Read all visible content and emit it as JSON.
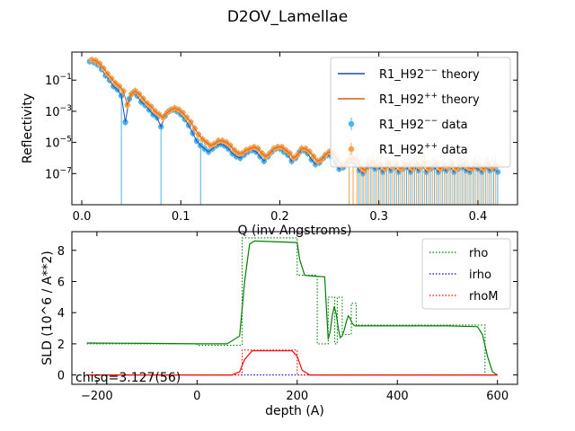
{
  "figure_title": "D2OV_Lamellae",
  "chart_data": [
    {
      "type": "scatter",
      "title": "",
      "xlabel": "Q (inv Angstroms)",
      "ylabel": "Reflectivity",
      "xlim": [
        -0.01,
        0.44
      ],
      "ylim_log10": [
        -9.0,
        0.8
      ],
      "yscale": "log",
      "x_ticks": [
        "0.0",
        "0.1",
        "0.2",
        "0.3",
        "0.4"
      ],
      "y_ticks": [
        {
          "base": "10",
          "exp": "−1"
        },
        {
          "base": "10",
          "exp": "−3"
        },
        {
          "base": "10",
          "exp": "−5"
        },
        {
          "base": "10",
          "exp": "−7"
        }
      ],
      "legend_position": "upper right",
      "legend": [
        {
          "label": "R1_H92",
          "sup": "−−",
          "suffix": " theory",
          "kind": "line"
        },
        {
          "label": "R1_H92",
          "sup": "++",
          "suffix": " theory",
          "kind": "line"
        },
        {
          "label": "R1_H92",
          "sup": "−−",
          "suffix": " data",
          "kind": "marker"
        },
        {
          "label": "R1_H92",
          "sup": "++",
          "suffix": " data",
          "kind": "marker"
        }
      ],
      "series": [
        {
          "color": "#4ab3f0",
          "theory_color": "#1f4fa0",
          "q": [
            0.008,
            0.012,
            0.016,
            0.02,
            0.024,
            0.028,
            0.032,
            0.036,
            0.04,
            0.044,
            0.048,
            0.052,
            0.056,
            0.06,
            0.064,
            0.068,
            0.072,
            0.076,
            0.08,
            0.084,
            0.088,
            0.092,
            0.096,
            0.1,
            0.104,
            0.108,
            0.112,
            0.116,
            0.12,
            0.124,
            0.128,
            0.132,
            0.136,
            0.14,
            0.144,
            0.148,
            0.152,
            0.156,
            0.16,
            0.164,
            0.168,
            0.172,
            0.176,
            0.18,
            0.184,
            0.188,
            0.192,
            0.196,
            0.2,
            0.204,
            0.208,
            0.212,
            0.216,
            0.22,
            0.224,
            0.228,
            0.232,
            0.236,
            0.24,
            0.244,
            0.248,
            0.252,
            0.256,
            0.26,
            0.264,
            0.268,
            0.272,
            0.276,
            0.28,
            0.284,
            0.288,
            0.292,
            0.296,
            0.3,
            0.304,
            0.308,
            0.312,
            0.316,
            0.32,
            0.324,
            0.328,
            0.332,
            0.336,
            0.34,
            0.344,
            0.348,
            0.352,
            0.356,
            0.36,
            0.364,
            0.368,
            0.372,
            0.376,
            0.38,
            0.384,
            0.388,
            0.392,
            0.396,
            0.4,
            0.404,
            0.408,
            0.412,
            0.416,
            0.42
          ],
          "log10_R": [
            0.2,
            0.15,
            0.0,
            -0.3,
            -0.7,
            -1.0,
            -1.4,
            -1.6,
            -2.0,
            -3.7,
            -2.2,
            -1.8,
            -2.0,
            -2.4,
            -2.6,
            -2.9,
            -3.2,
            -3.4,
            -4.0,
            -3.3,
            -3.0,
            -2.9,
            -3.0,
            -3.2,
            -3.5,
            -3.9,
            -4.4,
            -4.9,
            -5.2,
            -5.4,
            -5.6,
            -5.4,
            -5.2,
            -5.1,
            -5.2,
            -5.4,
            -5.7,
            -5.9,
            -6.0,
            -5.8,
            -5.6,
            -5.5,
            -5.6,
            -5.9,
            -6.2,
            -5.9,
            -5.6,
            -5.4,
            -5.4,
            -5.6,
            -5.8,
            -6.2,
            -6.0,
            -5.6,
            -5.5,
            -5.7,
            -6.1,
            -6.4,
            -6.3,
            -6.0,
            -5.8,
            -5.9,
            -6.3,
            -6.7,
            -6.6,
            -6.3,
            -6.2,
            -6.4,
            -6.8,
            -7.0,
            -6.6,
            -6.5,
            -6.7,
            -6.6,
            -6.9,
            -6.5,
            -6.8,
            -6.6,
            -6.9,
            -6.7,
            -6.6,
            -6.9,
            -6.6,
            -6.8,
            -6.5,
            -6.9,
            -6.7,
            -6.6,
            -6.9,
            -6.7,
            -6.8,
            -6.6,
            -6.9,
            -6.7,
            -6.6,
            -6.8,
            -6.9,
            -6.6,
            -6.7,
            -6.9,
            -6.6,
            -6.8,
            -6.7,
            -6.9
          ],
          "err_to_floor_from_q": 0.28,
          "deep_dips": [
            0.04,
            0.08,
            0.12
          ]
        },
        {
          "color": "#f5a04a",
          "theory_color": "#d9601a",
          "q": [
            0.01,
            0.014,
            0.018,
            0.022,
            0.026,
            0.03,
            0.034,
            0.038,
            0.042,
            0.046,
            0.05,
            0.054,
            0.058,
            0.062,
            0.066,
            0.07,
            0.074,
            0.078,
            0.082,
            0.086,
            0.09,
            0.094,
            0.098,
            0.102,
            0.106,
            0.11,
            0.114,
            0.118,
            0.122,
            0.126,
            0.13,
            0.134,
            0.138,
            0.142,
            0.146,
            0.15,
            0.154,
            0.158,
            0.162,
            0.166,
            0.17,
            0.174,
            0.178,
            0.182,
            0.186,
            0.19,
            0.194,
            0.198,
            0.202,
            0.206,
            0.21,
            0.214,
            0.218,
            0.222,
            0.226,
            0.23,
            0.234,
            0.238,
            0.242,
            0.246,
            0.25,
            0.254,
            0.258,
            0.262,
            0.266,
            0.27,
            0.274,
            0.278,
            0.282,
            0.286,
            0.29,
            0.294,
            0.298,
            0.302,
            0.306,
            0.31,
            0.314,
            0.318,
            0.322,
            0.326,
            0.33,
            0.334,
            0.338,
            0.342,
            0.346,
            0.35,
            0.354,
            0.358,
            0.362,
            0.366,
            0.37,
            0.374,
            0.378,
            0.382,
            0.386,
            0.39,
            0.394,
            0.398,
            0.402,
            0.406,
            0.41,
            0.414,
            0.418
          ],
          "log10_R": [
            0.3,
            0.25,
            0.05,
            -0.25,
            -0.6,
            -0.9,
            -1.2,
            -1.4,
            -1.7,
            -2.6,
            -1.9,
            -1.7,
            -1.9,
            -2.2,
            -2.5,
            -2.7,
            -3.0,
            -3.2,
            -3.4,
            -3.1,
            -2.9,
            -2.8,
            -2.9,
            -3.1,
            -3.4,
            -3.7,
            -4.1,
            -4.5,
            -4.8,
            -5.0,
            -5.2,
            -5.1,
            -4.9,
            -4.9,
            -5.0,
            -5.2,
            -5.5,
            -5.7,
            -5.7,
            -5.5,
            -5.4,
            -5.3,
            -5.4,
            -5.7,
            -5.9,
            -5.7,
            -5.4,
            -5.3,
            -5.3,
            -5.5,
            -5.7,
            -6.0,
            -5.8,
            -5.4,
            -5.4,
            -5.6,
            -5.9,
            -6.2,
            -6.1,
            -5.8,
            -5.6,
            -5.7,
            -6.1,
            -6.5,
            -6.4,
            -6.1,
            -6.0,
            -6.2,
            -6.6,
            -6.8,
            -6.4,
            -6.3,
            -6.5,
            -6.4,
            -6.7,
            -6.3,
            -6.6,
            -6.4,
            -6.7,
            -6.5,
            -6.4,
            -6.7,
            -6.4,
            -6.6,
            -6.3,
            -6.7,
            -6.5,
            -6.4,
            -6.7,
            -6.5,
            -6.6,
            -6.4,
            -6.7,
            -6.5,
            -6.4,
            -6.6,
            -6.7,
            -6.4,
            -6.5,
            -6.7,
            -6.4,
            -6.6,
            -6.5
          ],
          "err_to_floor_from_q": 0.27,
          "deep_dips": []
        }
      ]
    },
    {
      "type": "line",
      "title": "",
      "xlabel": "depth (A)",
      "ylabel": "SLD (10^6 / A**2)",
      "xlim": [
        -250,
        640
      ],
      "ylim": [
        -0.6,
        9.2
      ],
      "x_ticks": [
        "−200",
        "0",
        "200",
        "400",
        "600"
      ],
      "x_tick_values": [
        -200,
        0,
        200,
        400,
        600
      ],
      "y_ticks": [
        "0",
        "2",
        "4",
        "6",
        "8"
      ],
      "y_tick_values": [
        0,
        2,
        4,
        6,
        8
      ],
      "legend_position": "upper right",
      "annotation": "chisq=3.127(56)",
      "series": [
        {
          "name": "rho",
          "color": "#008000",
          "style": "dotted",
          "x": [
            -220,
            0,
            0,
            90,
            90,
            140,
            140,
            200,
            200,
            215,
            215,
            240,
            240,
            262,
            262,
            275,
            275,
            280,
            280,
            290,
            290,
            308,
            308,
            318,
            318,
            575,
            575,
            600
          ],
          "y": [
            2.0,
            2.0,
            1.9,
            1.9,
            8.8,
            8.8,
            8.8,
            8.8,
            6.4,
            6.4,
            6.4,
            6.4,
            2.0,
            2.0,
            5.0,
            5.0,
            2.0,
            2.0,
            5.0,
            5.0,
            2.6,
            2.6,
            4.6,
            4.6,
            3.2,
            3.2,
            0.0,
            0.0
          ]
        },
        {
          "name": "rho_smooth",
          "color": "#008000",
          "style": "solid",
          "x": [
            -220,
            -100,
            0,
            60,
            85,
            95,
            105,
            115,
            200,
            205,
            215,
            230,
            255,
            258,
            262,
            266,
            270,
            274,
            278,
            282,
            286,
            290,
            294,
            298,
            302,
            306,
            310,
            315,
            320,
            400,
            500,
            560,
            570,
            580,
            590,
            600
          ],
          "y": [
            2.05,
            2.03,
            2.0,
            2.0,
            2.5,
            6.0,
            8.4,
            8.6,
            8.5,
            7.4,
            6.4,
            6.35,
            6.3,
            4.5,
            2.3,
            2.8,
            3.8,
            4.4,
            3.9,
            3.0,
            2.4,
            2.5,
            2.9,
            3.4,
            3.8,
            3.6,
            3.3,
            3.15,
            3.15,
            3.15,
            3.15,
            3.1,
            2.6,
            1.2,
            0.2,
            0.0
          ]
        },
        {
          "name": "irho",
          "color": "#0000ff",
          "style": "dotted",
          "x": [
            -220,
            600
          ],
          "y": [
            0.0,
            0.0
          ]
        },
        {
          "name": "rhoM",
          "color": "#ff0000",
          "style": "dotted",
          "x": [
            -220,
            90,
            90,
            200,
            200,
            600
          ],
          "y": [
            0.0,
            0.0,
            1.6,
            1.6,
            0.0,
            0.0
          ]
        },
        {
          "name": "rhoM_smooth",
          "color": "#ff0000",
          "style": "solid",
          "x": [
            -220,
            70,
            85,
            95,
            110,
            190,
            200,
            210,
            225,
            600
          ],
          "y": [
            0.0,
            0.0,
            0.2,
            1.0,
            1.55,
            1.55,
            1.2,
            0.3,
            0.0,
            0.0
          ]
        }
      ],
      "legend": [
        {
          "label": "rho",
          "color": "#008000"
        },
        {
          "label": "irho",
          "color": "#0000ff"
        },
        {
          "label": "rhoM",
          "color": "#ff0000"
        }
      ]
    }
  ]
}
